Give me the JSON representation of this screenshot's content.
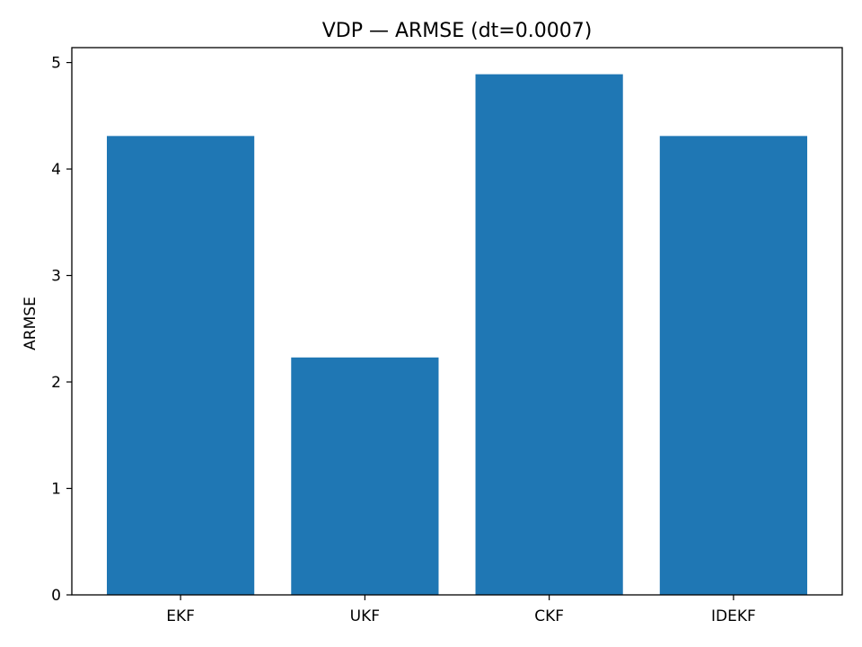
{
  "chart_data": {
    "type": "bar",
    "title": "VDP — ARMSE (dt=0.0007)",
    "xlabel": "",
    "ylabel": "ARMSE",
    "categories": [
      "EKF",
      "UKF",
      "CKF",
      "IDEKF"
    ],
    "values": [
      4.31,
      2.23,
      4.89,
      4.31
    ],
    "ylim": [
      0,
      5.14
    ],
    "yticks": [
      0,
      1,
      2,
      3,
      4,
      5
    ],
    "ytick_labels": [
      "0",
      "1",
      "2",
      "3",
      "4",
      "5"
    ],
    "bar_color": "#1f77b4",
    "grid": false,
    "legend": "none"
  }
}
